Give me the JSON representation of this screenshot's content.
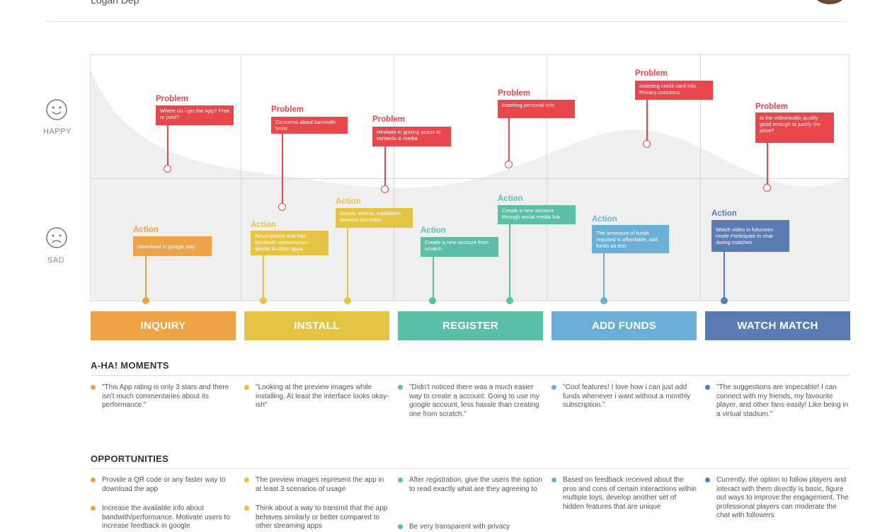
{
  "header": {
    "name": "Logan Dep"
  },
  "emotions": {
    "happy": "HAPPY",
    "sad": "SAD"
  },
  "colors": {
    "inquiry": "#efa346",
    "install": "#e5c444",
    "register": "#5bbfa8",
    "add_funds": "#6cafd6",
    "watch": "#5b7bb4",
    "problem": "#e8474c"
  },
  "stages": [
    "INQUIRY",
    "INSTALL",
    "REGISTER",
    "ADD FUNDS",
    "WATCH MATCH"
  ],
  "problem_label": "Problem",
  "action_label": "Action",
  "problems": [
    {
      "text": "Where do i get the App? Free or paid?"
    },
    {
      "text": "Concerns about bandwith limits"
    },
    {
      "text": "Hesitate in grating acess to contacts & media"
    },
    {
      "text": "Inserting personal info"
    },
    {
      "text": "Inserting credit card info Privacy concerns"
    },
    {
      "text": "Is the video/audio quality good enough to justify the price?"
    }
  ],
  "actions": [
    {
      "text": "Download in google play"
    },
    {
      "text": "Assumptions that has bandwith consumption similar to other apps"
    },
    {
      "text": "Grants access, instalation process procedes"
    },
    {
      "text": "Create a new account from scratch"
    },
    {
      "text": "Create a new account through social media link"
    },
    {
      "text": "The ammount of funds required is affordable, add funds as test"
    },
    {
      "text": "Watch video in fulscreen mode Participate in chat during matches"
    }
  ],
  "aha": {
    "title": "A-HA! MOMENTS",
    "items": [
      "\"This App rating is only 3 stars and there isn't much commentaries about its performance.\"",
      "\"Looking at the preview images while installing. At least the interface looks okay-ish\"",
      "\"Didn't noticed there was a much easier way to create a account. Going to use my google account, less hassle than creating one from scratch.\"",
      "\"Cool features! I love how i can just add funds whenever i want without a monthly subscription.\"",
      "\"The suggestions are impecable! I can connect with my friends, my favourite player, and other fans easily! Like being in a virtual stadium.\""
    ]
  },
  "opportunities": {
    "title": "OPPORTUNITIES",
    "columns": [
      [
        "Provide a QR code or any faster way to download the app",
        "Increase the available info about bandwith/performance. Motivate users to increase feedback in google"
      ],
      [
        "The preview images represent the app in at least 3 scenarios of usage",
        "Think about a way to transmit that the app behaves similarly or better compared to other streaming apps"
      ],
      [
        "After registration, give the users the option to read exactly what are they agreeing to",
        "Be very transparent with privacy"
      ],
      [
        "Based on feedback received about the pros and cons of certain interactions within multiple toys, develop another set of hidden features that are unique"
      ],
      [
        "Currently, the option to follow players and interact with them directly is basic, figure out ways to improve the engagement. The professional players can moderate the chat with followers"
      ]
    ]
  }
}
